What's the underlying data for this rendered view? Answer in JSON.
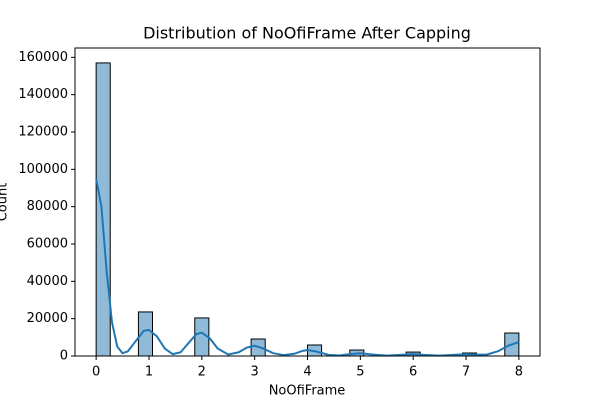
{
  "chart_data": {
    "type": "histogram",
    "title": "Distribution of NoOfiFrame After Capping",
    "x_label": "NoOfiFrame",
    "y_label": "Count",
    "bins": [
      0,
      0.2667,
      0.5333,
      0.8,
      1.0667,
      1.3333,
      1.6,
      1.8667,
      2.1333,
      2.4,
      2.6667,
      2.9333,
      3.2,
      3.4667,
      3.7333,
      4,
      4.2667,
      4.5333,
      4.8,
      5.0667,
      5.3333,
      5.6,
      5.8667,
      6.1333,
      6.4,
      6.6667,
      6.9333,
      7.2,
      7.4667,
      7.7333,
      8
    ],
    "values": [
      157000,
      0,
      0,
      23600,
      0,
      0,
      0,
      20400,
      0,
      0,
      0,
      9100,
      0,
      0,
      0,
      5900,
      0,
      0,
      3200,
      0,
      0,
      0,
      2100,
      0,
      0,
      0,
      1600,
      0,
      0,
      12300
    ],
    "color": "#8fbbd9",
    "edgecolor": "#000000",
    "kde": {
      "color": "#1f77b4",
      "x": [
        0,
        0.1,
        0.2,
        0.3,
        0.4,
        0.5,
        0.6,
        0.75,
        0.9,
        1.0,
        1.15,
        1.3,
        1.45,
        1.6,
        1.75,
        1.9,
        2.0,
        2.15,
        2.3,
        2.5,
        2.7,
        2.85,
        3.0,
        3.15,
        3.35,
        3.55,
        3.75,
        3.9,
        4.0,
        4.15,
        4.4,
        4.6,
        4.8,
        5.0,
        5.2,
        5.5,
        5.8,
        6.0,
        6.2,
        6.5,
        6.8,
        7.0,
        7.2,
        7.4,
        7.6,
        7.8,
        8.0
      ],
      "values": [
        95000,
        80000,
        45000,
        18000,
        5000,
        1500,
        2500,
        8000,
        13500,
        14000,
        10500,
        4000,
        1000,
        2000,
        7000,
        11800,
        12500,
        9500,
        4000,
        800,
        2000,
        4500,
        5500,
        4200,
        1500,
        500,
        1200,
        2700,
        3200,
        2500,
        600,
        300,
        1000,
        1500,
        900,
        200,
        700,
        1000,
        600,
        200,
        700,
        1000,
        700,
        800,
        2500,
        5500,
        7500
      ]
    },
    "xlim": [
      -0.4,
      8.4
    ],
    "ylim": [
      0,
      165000
    ],
    "xticks": [
      0,
      1,
      2,
      3,
      4,
      5,
      6,
      7,
      8
    ],
    "yticks": [
      0,
      20000,
      40000,
      60000,
      80000,
      100000,
      120000,
      140000,
      160000
    ]
  }
}
